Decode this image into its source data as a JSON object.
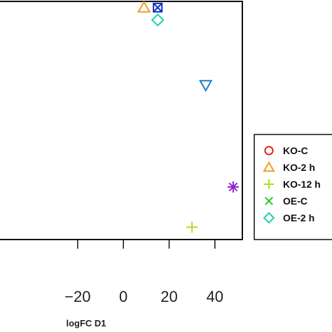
{
  "chart_data": {
    "type": "scatter",
    "xlabel": "logFC D1",
    "ylabel": "",
    "xlim": [
      -57,
      52
    ],
    "ylim": [
      -40,
      37
    ],
    "x_ticks": [
      -20,
      0,
      20,
      40
    ],
    "x_tick_labels": [
      "−20",
      "0",
      "20",
      "40"
    ],
    "grid": false,
    "legend_position": "right",
    "series": [
      {
        "name": "KO-C",
        "marker": "circle",
        "color": "#e0201b",
        "points": []
      },
      {
        "name": "KO-2 h",
        "marker": "triangle-up",
        "color": "#f0a020",
        "points": [
          [
            9,
            35
          ]
        ]
      },
      {
        "name": "KO-12 h",
        "marker": "plus",
        "color": "#a8e020",
        "points": [
          [
            30,
            -36
          ]
        ]
      },
      {
        "name": "OE-C",
        "marker": "cross",
        "color": "#22cc22",
        "points": []
      },
      {
        "name": "OE-2 h",
        "marker": "diamond",
        "color": "#20d0b0",
        "points": [
          [
            15,
            31
          ]
        ]
      },
      {
        "name": "",
        "marker": "square-x",
        "color": "#1030c0",
        "points": [
          [
            15,
            35
          ]
        ]
      },
      {
        "name": "",
        "marker": "triangle-down",
        "color": "#1a7ec8",
        "points": [
          [
            36,
            10
          ]
        ]
      },
      {
        "name": "",
        "marker": "asterisk",
        "color": "#9020d0",
        "points": [
          [
            48,
            -23
          ]
        ]
      }
    ],
    "legend": [
      {
        "label": "KO-C",
        "marker": "circle",
        "color": "#e0201b"
      },
      {
        "label": "KO-2 h",
        "marker": "triangle-up",
        "color": "#f0a020"
      },
      {
        "label": "KO-12 h",
        "marker": "plus",
        "color": "#a8e020"
      },
      {
        "label": "OE-C",
        "marker": "cross",
        "color": "#22cc22"
      },
      {
        "label": "OE-2 h",
        "marker": "diamond",
        "color": "#20d0b0"
      }
    ]
  }
}
